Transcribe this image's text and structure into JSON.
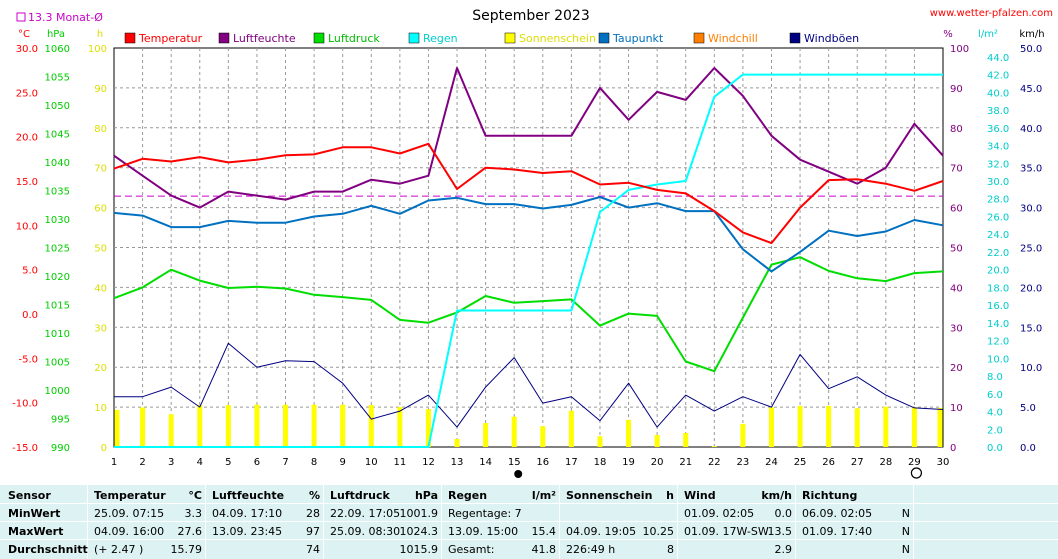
{
  "chart_data": {
    "type": "line",
    "title": "September 2023",
    "source": "www.wetter-pfalzen.com",
    "avg_note": "13.3 Monat-Ø",
    "left_axes": [
      {
        "name": "°C",
        "min": -15,
        "max": 30,
        "ticks": [
          "30.0",
          "25.0",
          "20.0",
          "15.0",
          "10.0",
          "5.0",
          "0.0",
          "-5.0",
          "-10.0",
          "-15.0"
        ],
        "color": "#ff0000"
      },
      {
        "name": "hPa",
        "min": 990,
        "max": 1060,
        "ticks": [
          "1060",
          "1055",
          "1050",
          "1045",
          "1040",
          "1035",
          "1030",
          "1025",
          "1020",
          "1015",
          "1010",
          "1005",
          "1000",
          "995",
          "990"
        ],
        "color": "#00cc00"
      },
      {
        "name": "h",
        "min": 0,
        "max": 100,
        "ticks": [
          "100",
          "90",
          "80",
          "70",
          "60",
          "50",
          "40",
          "30",
          "20",
          "10",
          "0"
        ],
        "color": "#dddd00"
      }
    ],
    "right_axes": [
      {
        "name": "%",
        "min": 0,
        "max": 100,
        "ticks": [
          "100",
          "90",
          "80",
          "70",
          "60",
          "50",
          "40",
          "30",
          "20",
          "10",
          "0"
        ],
        "color": "#800080"
      },
      {
        "name": "l/m²",
        "min": 0,
        "max": 45,
        "ticks": [
          "44.0",
          "42.0",
          "40.0",
          "38.0",
          "36.0",
          "34.0",
          "32.0",
          "30.0",
          "28.0",
          "26.0",
          "24.0",
          "22.0",
          "20.0",
          "18.0",
          "16.0",
          "14.0",
          "12.0",
          "10.0",
          "8.0",
          "6.0",
          "4.0",
          "2.0",
          "0.0"
        ],
        "color": "#00cccc"
      },
      {
        "name": "km/h",
        "min": 0,
        "max": 50,
        "ticks": [
          "50.0",
          "45.0",
          "40.0",
          "35.0",
          "30.0",
          "25.0",
          "20.0",
          "15.0",
          "10.0",
          "5.0",
          "0.0"
        ],
        "color": "#000080"
      }
    ],
    "x": [
      1,
      2,
      3,
      4,
      5,
      6,
      7,
      8,
      9,
      10,
      11,
      12,
      13,
      14,
      15,
      16,
      17,
      18,
      19,
      20,
      21,
      22,
      23,
      24,
      25,
      26,
      27,
      28,
      29,
      30
    ],
    "legend": [
      "Temperatur",
      "Luftfeuchte",
      "Luftdruck",
      "Regen",
      "Sonnenschein",
      "Taupunkt",
      "Windchill",
      "Windböen"
    ],
    "legend_colors": [
      "#ff0000",
      "#800080",
      "#00dd00",
      "#00ffff",
      "#ffff00",
      "#0070c0",
      "#ff8000",
      "#000080"
    ],
    "monthly_avg_temp": 13.3,
    "series": [
      {
        "name": "Temperatur",
        "axis": "°C",
        "color": "#ff0000",
        "values": [
          16.4,
          17.5,
          17.2,
          17.7,
          17.1,
          17.4,
          17.9,
          18.0,
          18.8,
          18.8,
          18.1,
          19.2,
          14.1,
          16.5,
          16.3,
          15.9,
          16.1,
          14.6,
          14.8,
          14.0,
          13.6,
          11.6,
          9.2,
          8.0,
          12.0,
          15.1,
          15.2,
          14.7,
          13.9,
          15.0
        ]
      },
      {
        "name": "Luftfeuchte",
        "axis": "%",
        "color": "#800080",
        "values": [
          73,
          68,
          63,
          60,
          64,
          63,
          62,
          64,
          64,
          67,
          66,
          68,
          95,
          78,
          78,
          78,
          78,
          90,
          82,
          89,
          87,
          95,
          88,
          78,
          72,
          69,
          66,
          70,
          81,
          73
        ]
      },
      {
        "name": "Luftdruck",
        "axis": "hPa",
        "color": "#00dd00",
        "values": [
          1016.1,
          1018.0,
          1021.1,
          1019.2,
          1017.9,
          1018.1,
          1017.8,
          1016.7,
          1016.3,
          1015.8,
          1012.3,
          1011.8,
          1013.6,
          1016.5,
          1015.3,
          1015.6,
          1015.9,
          1011.3,
          1013.4,
          1013.0,
          1005.0,
          1003.3,
          1012.7,
          1022.0,
          1023.3,
          1020.9,
          1019.6,
          1019.1,
          1020.5,
          1020.8
        ]
      },
      {
        "name": "Regen",
        "axis": "l/m²",
        "color": "#00ffff",
        "values": [
          0,
          0,
          0,
          0,
          0,
          0,
          0,
          0,
          0,
          0,
          0,
          0,
          15.4,
          15.4,
          15.4,
          15.4,
          15.4,
          26.5,
          29.0,
          29.6,
          30.0,
          39.5,
          42.0,
          42.0,
          42.0,
          42.0,
          42.0,
          42.0,
          42.0,
          42.0
        ]
      },
      {
        "name": "Sonnenschein",
        "axis": "h",
        "color": "#ffff00",
        "bars": true,
        "values": [
          9.3,
          9.9,
          8.2,
          10.5,
          10.5,
          10.6,
          10.6,
          10.6,
          10.6,
          10.5,
          10.0,
          9.5,
          2.0,
          6.0,
          7.6,
          5.2,
          9.1,
          2.7,
          6.8,
          3.0,
          3.5,
          0.2,
          5.8,
          9.9,
          10.3,
          10.3,
          9.7,
          10.1,
          10.0,
          9.8
        ]
      },
      {
        "name": "Taupunkt",
        "axis": "°C",
        "color": "#0070c0",
        "values": [
          11.4,
          11.1,
          9.8,
          9.8,
          10.5,
          10.3,
          10.3,
          11.0,
          11.3,
          12.2,
          11.3,
          12.8,
          13.1,
          12.4,
          12.4,
          11.9,
          12.3,
          13.2,
          12.0,
          12.5,
          11.6,
          11.6,
          7.3,
          4.8,
          7.0,
          9.4,
          8.8,
          9.3,
          10.6,
          10.0
        ]
      },
      {
        "name": "Windböen",
        "axis": "km/h",
        "color": "#000080",
        "values": [
          6.3,
          6.3,
          7.5,
          5.0,
          13.0,
          10.0,
          10.8,
          10.7,
          8.0,
          3.5,
          4.5,
          6.5,
          2.5,
          7.5,
          11.2,
          5.5,
          6.3,
          3.3,
          8.0,
          2.5,
          6.5,
          4.5,
          6.3,
          5.0,
          11.6,
          7.3,
          8.8,
          6.5,
          4.9,
          4.7
        ]
      }
    ]
  },
  "stats": {
    "headers": {
      "sensor": "Sensor",
      "temp": "Temperatur",
      "temp_unit": "°C",
      "hum": "Luftfeuchte",
      "hum_unit": "%",
      "press": "Luftdruck",
      "press_unit": "hPa",
      "rain": "Regen",
      "rain_unit": "l/m²",
      "sun": "Sonnenschein",
      "sun_unit": "h",
      "wind": "Wind",
      "wind_unit": "km/h",
      "dir": "Richtung"
    },
    "rows": [
      {
        "label": "MinWert",
        "temp_time": "25.09.  07:15",
        "temp_val": "3.3",
        "hum_time": "04.09.  17:10",
        "hum_val": "28",
        "press_time": "22.09.  17:05",
        "press_val": "1001.9",
        "rain_time": "Regentage: 7",
        "rain_val": "",
        "sun_time": "",
        "sun_val": "",
        "wind_time": "01.09.  02:05",
        "wind_val": "0.0",
        "dir_time": "06.09.  02:05",
        "dir_val": "N"
      },
      {
        "label": "MaxWert",
        "temp_time": "04.09.  16:00",
        "temp_val": "27.6",
        "hum_time": "13.09.  23:45",
        "hum_val": "97",
        "press_time": "25.09.  08:30",
        "press_val": "1024.3",
        "rain_time": "13.09.  15:00",
        "rain_val": "15.4",
        "sun_time": "04.09.  19:05",
        "sun_val": "10.25",
        "wind_time": "01.09.  17W-SW",
        "wind_val": "13.5",
        "dir_time": "01.09.  17:40",
        "dir_val": "N"
      },
      {
        "label": "Durchschnitt",
        "temp_time": "(+ 2.47 )",
        "temp_val": "15.79",
        "hum_time": "",
        "hum_val": "74",
        "press_time": "",
        "press_val": "1015.9",
        "rain_time": "Gesamt:",
        "rain_val": "41.8",
        "sun_time": "226:49 h",
        "sun_val": "8",
        "wind_time": "",
        "wind_val": "2.9",
        "dir_time": "",
        "dir_val": "N"
      }
    ]
  }
}
